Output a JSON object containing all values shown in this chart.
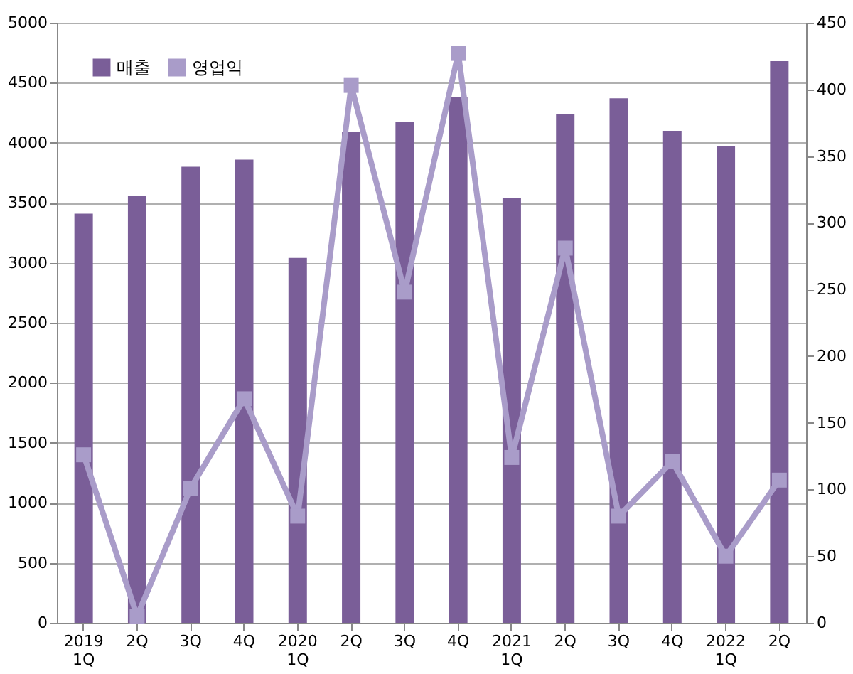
{
  "chart_data": {
    "type": "bar",
    "categories": [
      "2019\n1Q",
      "2Q",
      "3Q",
      "4Q",
      "2020\n1Q",
      "2Q",
      "3Q",
      "4Q",
      "2021\n1Q",
      "2Q",
      "3Q",
      "4Q",
      "2022\n1Q",
      "2Q"
    ],
    "series": [
      {
        "name": "매출",
        "color": "#7a5e98",
        "values": [
          3410,
          3560,
          3800,
          3860,
          3040,
          4090,
          4170,
          4380,
          3540,
          4240,
          4370,
          4100,
          3970,
          4680
        ]
      },
      {
        "name": "영업익",
        "type": "line",
        "axis": "y2",
        "color": "#a99cc9",
        "marker": "square",
        "values": [
          126,
          5,
          101,
          168,
          80,
          403,
          248,
          427,
          124,
          281,
          80,
          121,
          50,
          107
        ]
      }
    ],
    "ylim": [
      0,
      5000
    ],
    "yticks": [
      0,
      500,
      1000,
      1500,
      2000,
      2500,
      3000,
      3500,
      4000,
      4500,
      5000
    ],
    "y2lim": [
      0,
      450
    ],
    "y2ticks": [
      0,
      50,
      100,
      150,
      200,
      250,
      300,
      350,
      400,
      450
    ],
    "grid": "y",
    "legend": "top left"
  }
}
